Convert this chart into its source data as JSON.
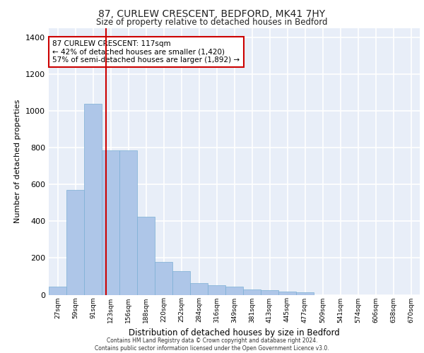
{
  "title": "87, CURLEW CRESCENT, BEDFORD, MK41 7HY",
  "subtitle": "Size of property relative to detached houses in Bedford",
  "xlabel": "Distribution of detached houses by size in Bedford",
  "ylabel": "Number of detached properties",
  "bar_values": [
    45,
    570,
    1040,
    785,
    785,
    425,
    180,
    130,
    65,
    50,
    45,
    30,
    25,
    18,
    12,
    0,
    0,
    0,
    0,
    0,
    0
  ],
  "bar_labels": [
    "27sqm",
    "59sqm",
    "91sqm",
    "123sqm",
    "156sqm",
    "188sqm",
    "220sqm",
    "252sqm",
    "284sqm",
    "316sqm",
    "349sqm",
    "381sqm",
    "413sqm",
    "445sqm",
    "477sqm",
    "509sqm",
    "541sqm",
    "574sqm",
    "606sqm",
    "638sqm",
    "670sqm"
  ],
  "bar_color": "#aec6e8",
  "bar_edge_color": "#7bafd4",
  "annotation_text": "87 CURLEW CRESCENT: 117sqm\n← 42% of detached houses are smaller (1,420)\n57% of semi-detached houses are larger (1,892) →",
  "vline_x": 2.75,
  "vline_color": "#cc0000",
  "annotation_box_color": "#cc0000",
  "ylim": [
    0,
    1450
  ],
  "yticks": [
    0,
    200,
    400,
    600,
    800,
    1000,
    1200,
    1400
  ],
  "bg_color": "#e8eef8",
  "grid_color": "#ffffff",
  "footer_line1": "Contains HM Land Registry data © Crown copyright and database right 2024.",
  "footer_line2": "Contains public sector information licensed under the Open Government Licence v3.0."
}
